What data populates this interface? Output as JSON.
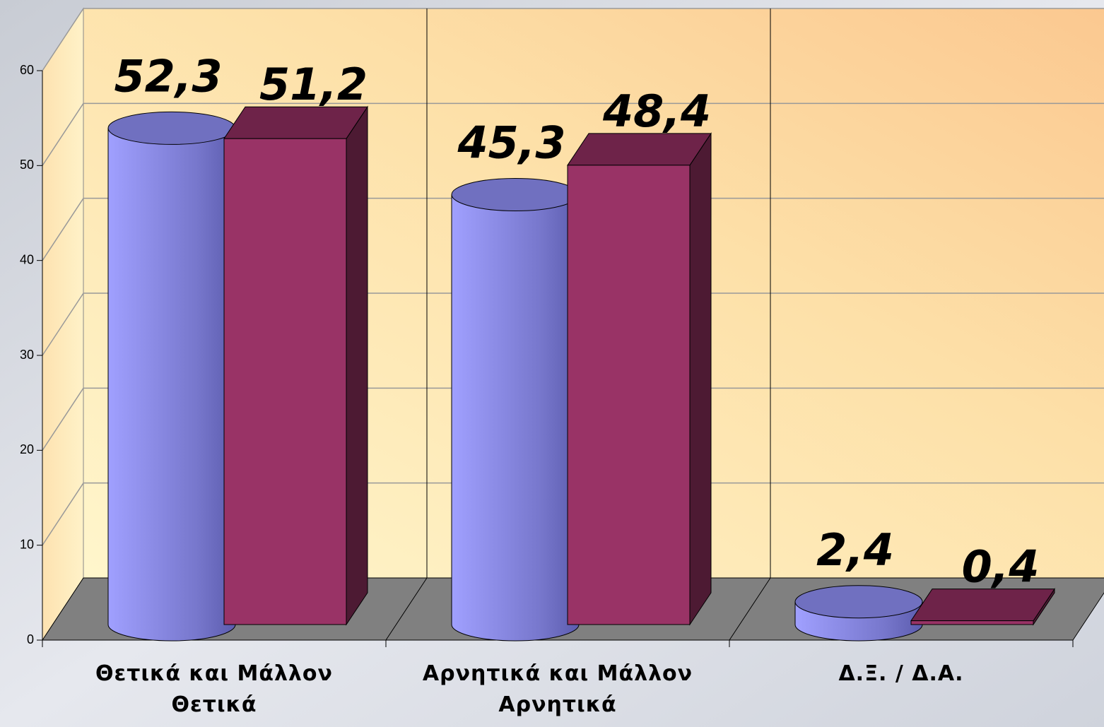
{
  "chart_data": {
    "type": "bar3d",
    "categories": [
      "Θετικά  και Μάλλον Θετικά",
      "Αρνητικά και Μάλλον Αρνητικά",
      "Δ.Ξ. / Δ.Α."
    ],
    "series": [
      {
        "color": "#9999ff",
        "values": [
          52.3,
          45.3,
          2.4
        ],
        "value_labels": [
          "52,3",
          "45,3",
          "2,4"
        ]
      },
      {
        "color": "#993366",
        "values": [
          51.2,
          48.4,
          0.4
        ],
        "value_labels": [
          "51,2",
          "48,4",
          "0,4"
        ]
      }
    ],
    "ylim": [
      0,
      60
    ],
    "yticks": [
      0,
      10,
      20,
      30,
      40,
      50,
      60
    ],
    "grid": true
  }
}
